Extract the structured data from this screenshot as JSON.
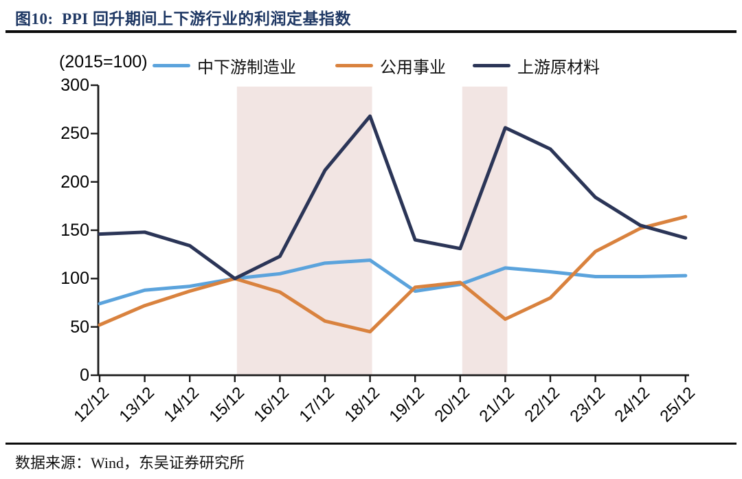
{
  "header": {
    "title": "图10:  PPI 回升期间上下游行业的利润定基指数"
  },
  "footer": {
    "source": "数据来源：Wind，东吴证券研究所"
  },
  "chart_data": {
    "type": "line",
    "title": "PPI 回升期间上下游行业的利润定基指数",
    "unit_label": "(2015=100)",
    "xlabel": "",
    "ylabel": "",
    "ylim": [
      0,
      300
    ],
    "yticks": [
      0,
      50,
      100,
      150,
      200,
      250,
      300
    ],
    "grid": false,
    "legend_position": "top",
    "categories": [
      "12/12",
      "13/12",
      "14/12",
      "15/12",
      "16/12",
      "17/12",
      "18/12",
      "19/12",
      "20/12",
      "21/12",
      "22/12",
      "23/12",
      "24/12",
      "25/12"
    ],
    "series": [
      {
        "id": "midstream-downstream-manufacturing",
        "name": "中下游制造业",
        "color": "#5BA3DC",
        "values": [
          74,
          88,
          92,
          100,
          105,
          116,
          119,
          87,
          94,
          111,
          107,
          102,
          102,
          103
        ]
      },
      {
        "id": "utilities",
        "name": "公用事业",
        "color": "#D9823E",
        "values": [
          52,
          72,
          87,
          100,
          86,
          56,
          45,
          91,
          96,
          58,
          80,
          128,
          152,
          164
        ]
      },
      {
        "id": "upstream-raw-materials",
        "name": "上游原材料",
        "color": "#2B3557",
        "values": [
          146,
          148,
          134,
          100,
          123,
          212,
          268,
          140,
          131,
          256,
          234,
          184,
          155,
          142
        ]
      }
    ],
    "highlight_bands": [
      {
        "from": "15/12",
        "to": "18/12"
      },
      {
        "from": "20/12",
        "to": "21/12"
      }
    ],
    "band_color": "#F2E5E3",
    "axis_color": "#1a1a1a"
  }
}
